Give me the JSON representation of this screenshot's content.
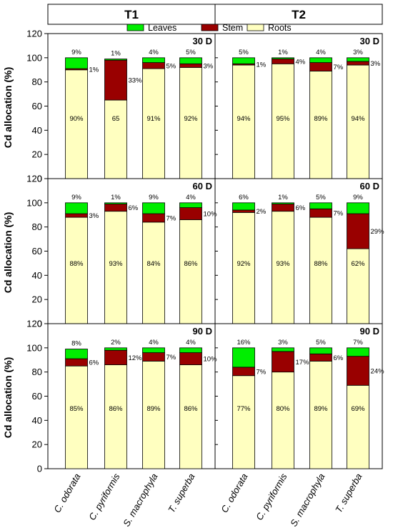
{
  "column_headers": [
    "T1",
    "T2"
  ],
  "legend": [
    {
      "label": "Leaves",
      "color": "#00ee00"
    },
    {
      "label": "Stem",
      "color": "#990000"
    },
    {
      "label": "Roots",
      "color": "#ffffc0"
    }
  ],
  "ylabel": "Cd allocation (%)",
  "ylim": [
    0,
    120
  ],
  "yticks": [
    "0",
    "20",
    "40",
    "60",
    "80",
    "100",
    "120"
  ],
  "categories": [
    "C. odorata",
    "C. pyriformis",
    "S. macrophyla",
    "T. superba"
  ],
  "chart_data": {
    "type": "bar",
    "stacked": true,
    "panels": [
      {
        "treatment": "T1",
        "period": "30 D",
        "roots": [
          90,
          65,
          91,
          92
        ],
        "stem": [
          1,
          33,
          5,
          3
        ],
        "leaves": [
          9,
          1,
          4,
          5
        ],
        "root_labels": [
          "90%",
          "65",
          "91%",
          "92%"
        ],
        "stem_labels": [
          "1%",
          "33%",
          "5%",
          "3%"
        ],
        "leaf_labels": [
          "9%",
          "1%",
          "4%",
          "5%"
        ]
      },
      {
        "treatment": "T2",
        "period": "30 D",
        "roots": [
          94,
          95,
          89,
          94
        ],
        "stem": [
          1,
          4,
          7,
          3
        ],
        "leaves": [
          5,
          1,
          4,
          3
        ],
        "root_labels": [
          "94%",
          "95%",
          "89%",
          "94%"
        ],
        "stem_labels": [
          "1%",
          "4%",
          "7%",
          "3%"
        ],
        "leaf_labels": [
          "5%",
          "1%",
          "4%",
          "3%"
        ]
      },
      {
        "treatment": "T1",
        "period": "60 D",
        "roots": [
          88,
          93,
          84,
          86
        ],
        "stem": [
          3,
          6,
          7,
          10
        ],
        "leaves": [
          9,
          1,
          9,
          4
        ],
        "root_labels": [
          "88%",
          "93%",
          "84%",
          "86%"
        ],
        "stem_labels": [
          "3%",
          "6%",
          "7%",
          "10%"
        ],
        "leaf_labels": [
          "9%",
          "1%",
          "9%",
          "4%"
        ]
      },
      {
        "treatment": "T2",
        "period": "60 D",
        "roots": [
          92,
          93,
          88,
          62
        ],
        "stem": [
          2,
          6,
          7,
          29
        ],
        "leaves": [
          6,
          1,
          5,
          9
        ],
        "root_labels": [
          "92%",
          "93%",
          "88%",
          "62%"
        ],
        "stem_labels": [
          "2%",
          "6%",
          "7%",
          "29%"
        ],
        "leaf_labels": [
          "6%",
          "1%",
          "5%",
          "9%"
        ]
      },
      {
        "treatment": "T1",
        "period": "90 D",
        "roots": [
          85,
          86,
          89,
          86
        ],
        "stem": [
          6,
          12,
          7,
          10
        ],
        "leaves": [
          8,
          2,
          4,
          4
        ],
        "root_labels": [
          "85%",
          "86%",
          "89%",
          "86%"
        ],
        "stem_labels": [
          "6%",
          "12%",
          "7%",
          "10%"
        ],
        "leaf_labels": [
          "8%",
          "2%",
          "4%",
          "4%"
        ]
      },
      {
        "treatment": "T2",
        "period": "90 D",
        "roots": [
          77,
          80,
          89,
          69
        ],
        "stem": [
          7,
          17,
          6,
          24
        ],
        "leaves": [
          16,
          3,
          5,
          7
        ],
        "root_labels": [
          "77%",
          "80%",
          "89%",
          "69%"
        ],
        "stem_labels": [
          "7%",
          "17%",
          "6%",
          "24%"
        ],
        "leaf_labels": [
          "16%",
          "3%",
          "5%",
          "7%"
        ]
      }
    ]
  }
}
